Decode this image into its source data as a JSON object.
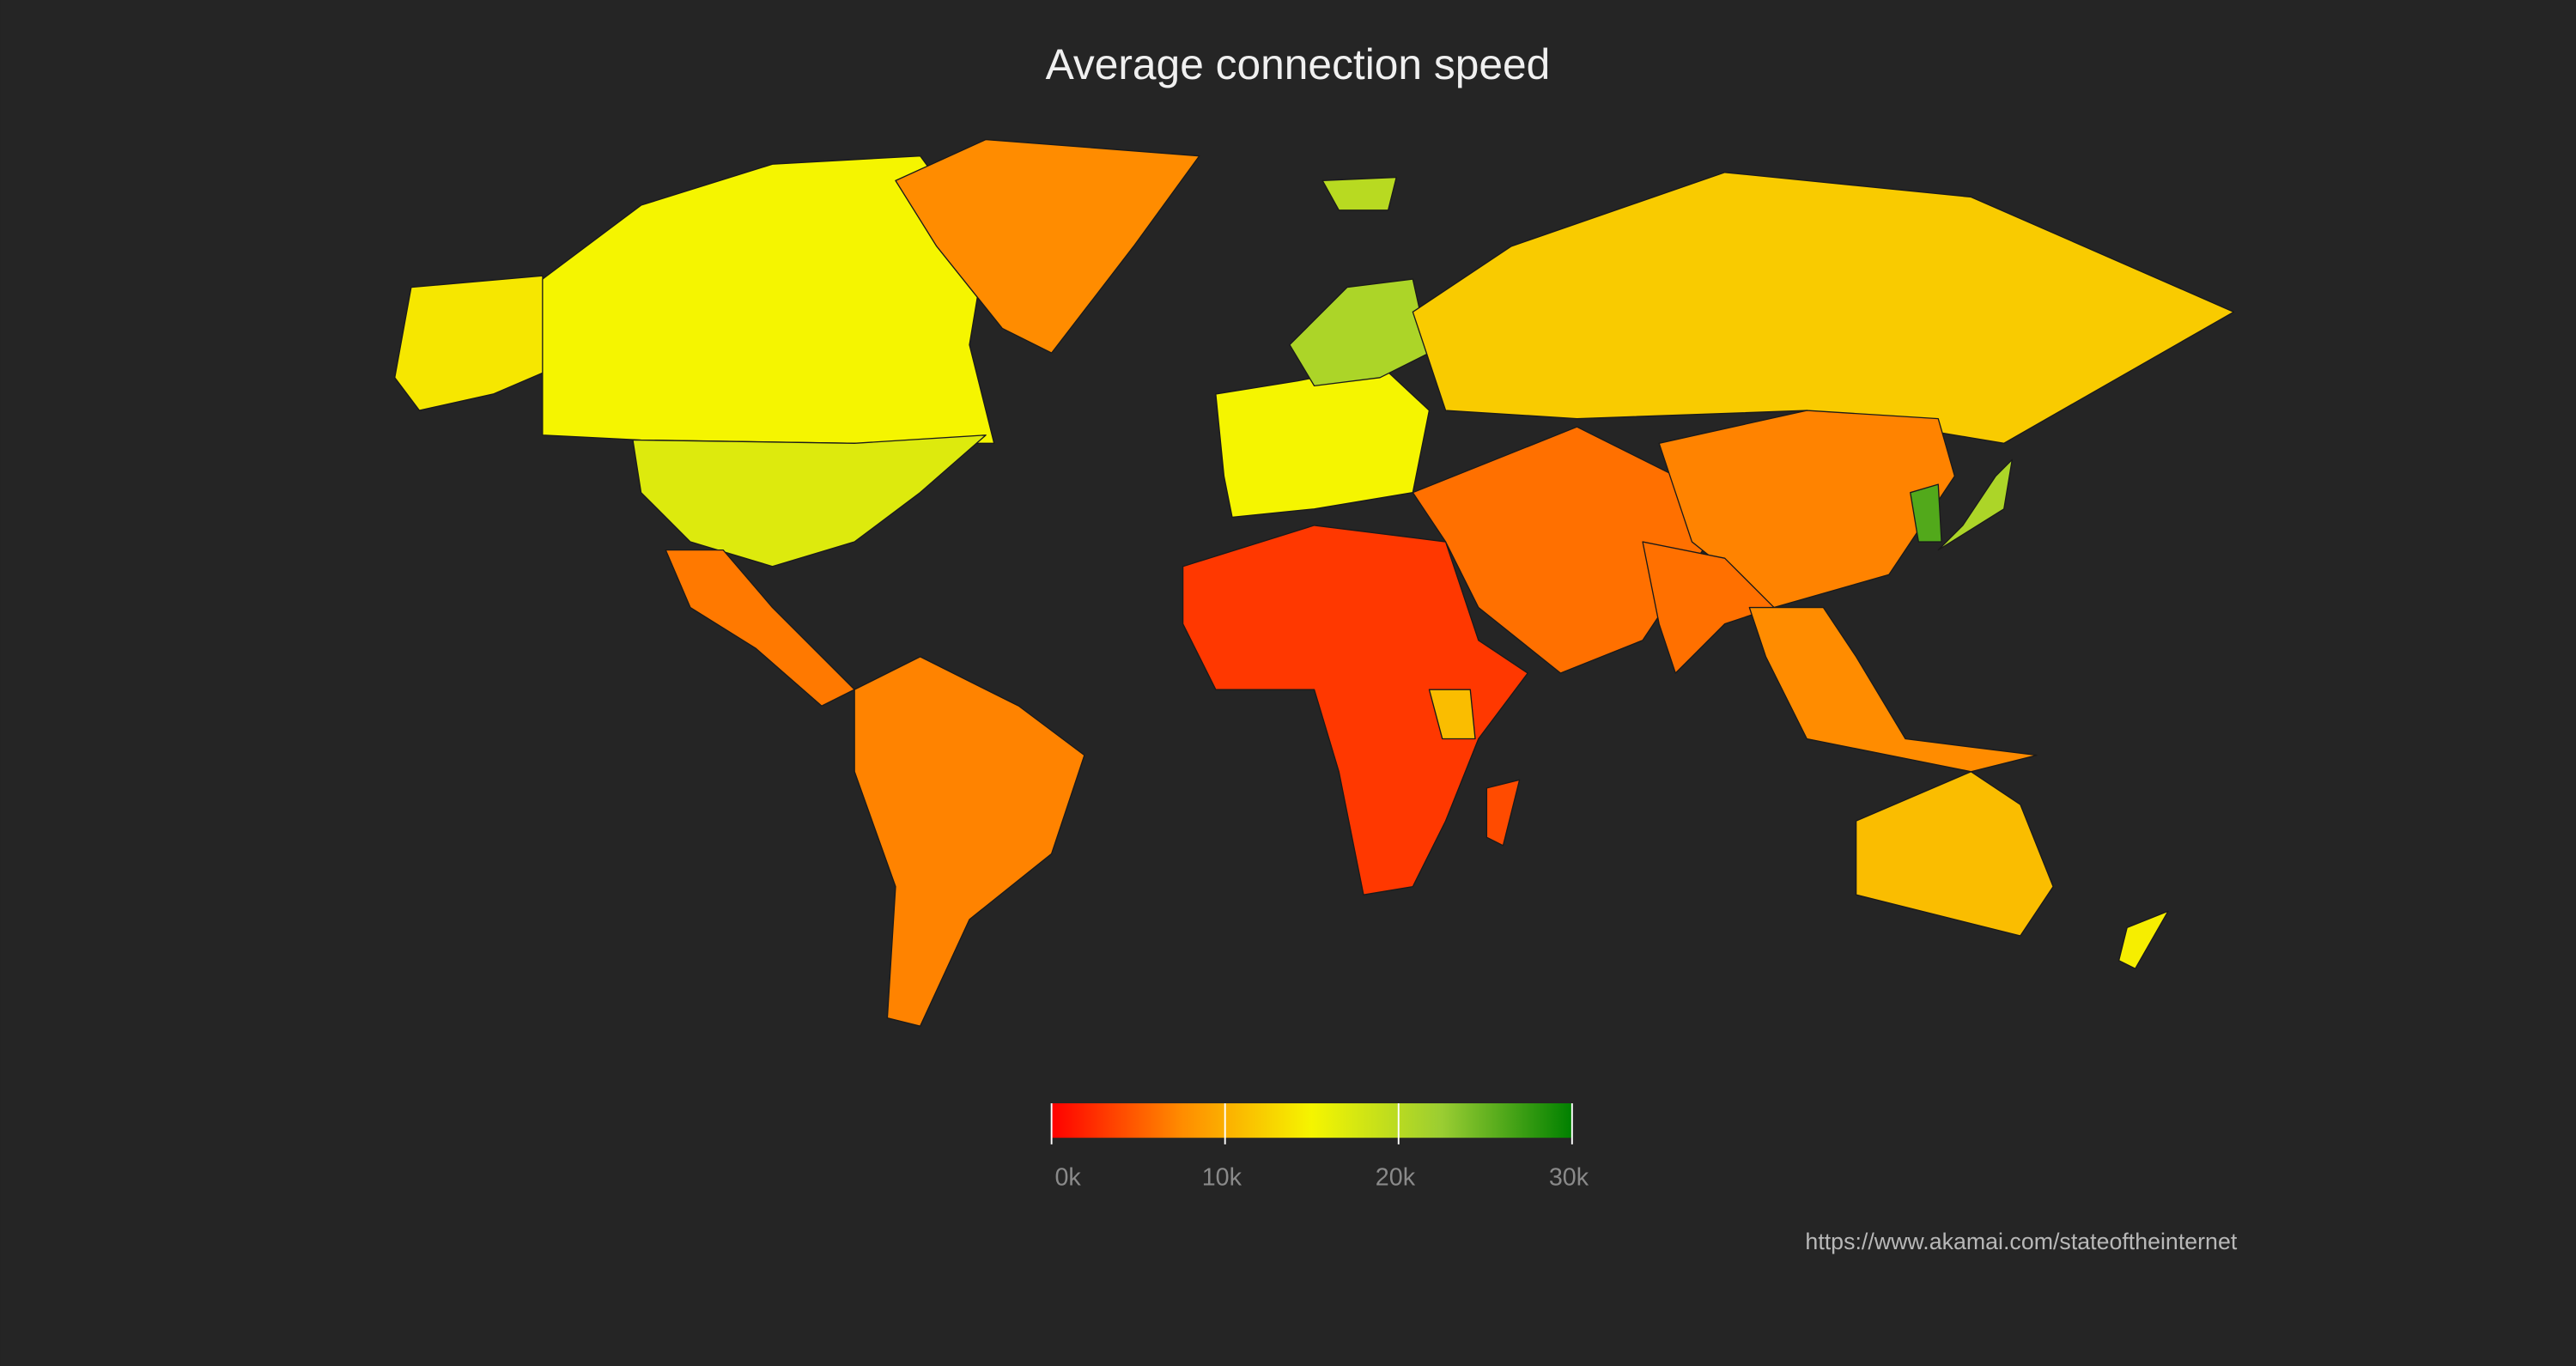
{
  "chart_data": {
    "type": "choropleth",
    "title": "Average connection speed",
    "values": [
      14000,
      15000,
      17000,
      7500,
      20000,
      6500,
      7000,
      15000,
      21000,
      12000,
      6000,
      7000,
      6000,
      7500,
      26000,
      21000,
      3000,
      11000,
      11000,
      14500,
      4000
    ],
    "color_stops": [
      "#ff0000",
      "#ff8c00",
      "#f5f500",
      "#9acd32",
      "#008000"
    ],
    "xlim": [
      0,
      30000
    ],
    "xticks": [
      {
        "value": 0,
        "label": "0k"
      },
      {
        "value": 10000,
        "label": "10k"
      },
      {
        "value": 20000,
        "label": "20k"
      },
      {
        "value": 30000,
        "label": "30k"
      }
    ],
    "source": "https://www.akamai.com/stateoftheinternet"
  }
}
